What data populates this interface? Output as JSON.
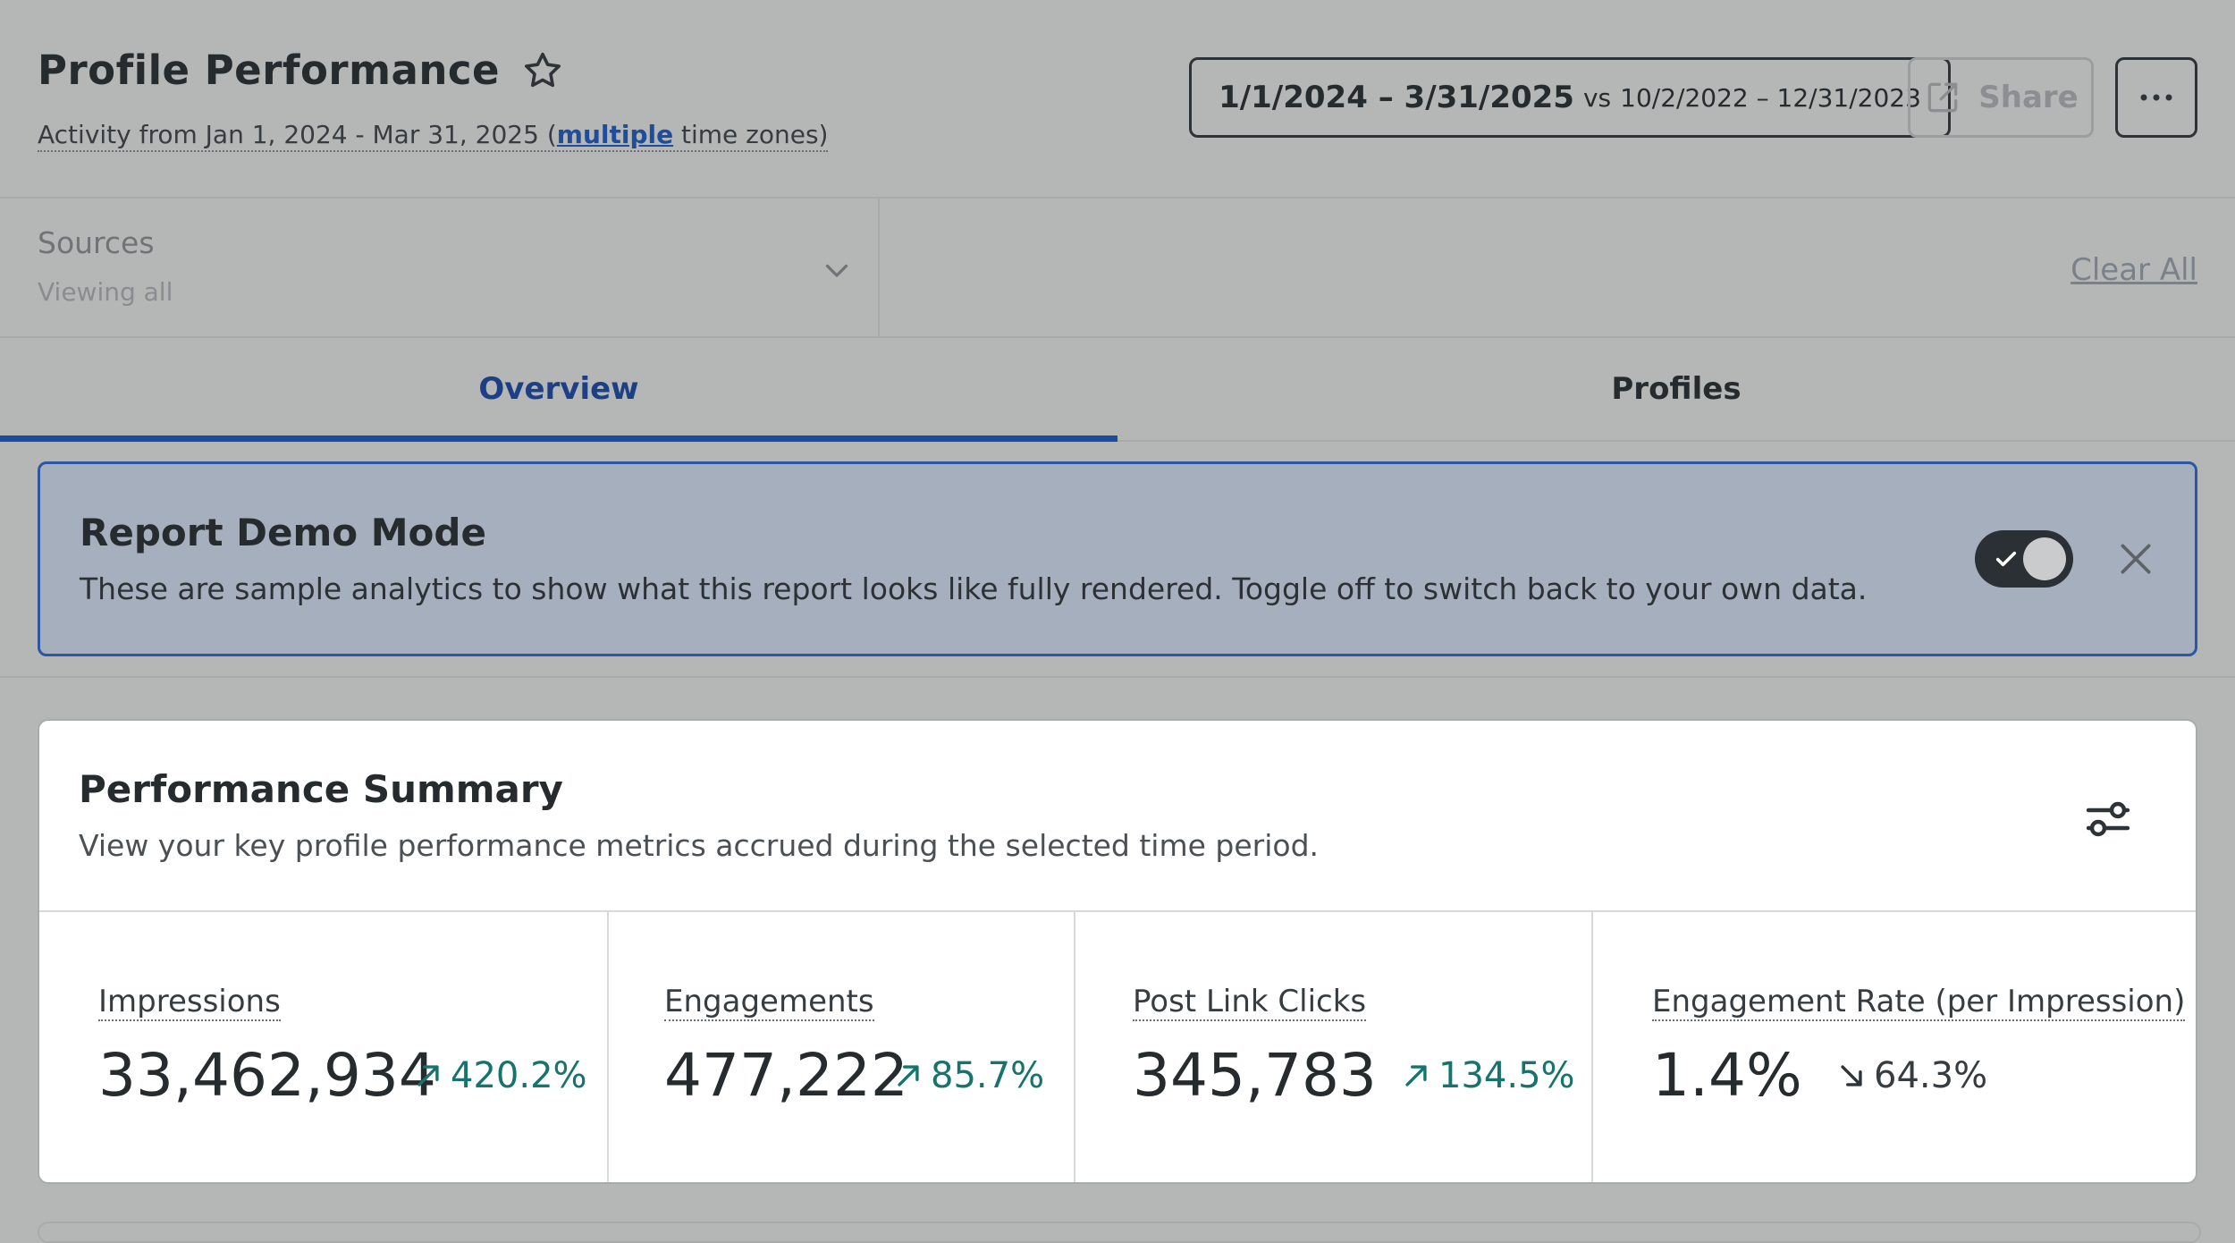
{
  "header": {
    "title": "Profile Performance",
    "activity_prefix": "Activity from Jan 1, 2024 - Mar 31, 2025 (",
    "activity_link": "multiple",
    "activity_suffix": " time zones)",
    "date_range": "1/1/2024 – 3/31/2025",
    "vs_label": "vs",
    "compare_range": "10/2/2022 – 12/31/2023",
    "share_label": "Share"
  },
  "filters": {
    "sources_label": "Sources",
    "sources_value": "Viewing all",
    "clear_all": "Clear All"
  },
  "tabs": [
    {
      "label": "Overview",
      "active": true
    },
    {
      "label": "Profiles",
      "active": false
    }
  ],
  "demo_banner": {
    "title": "Report Demo Mode",
    "description": "These are sample analytics to show what this report looks like fully rendered. Toggle off to switch back to your own data.",
    "toggle_on": true
  },
  "summary": {
    "title": "Performance Summary",
    "description": "View your key profile performance metrics accrued during the selected time period.",
    "metrics": [
      {
        "label": "Impressions",
        "value": "33,462,934",
        "change": "420.2%",
        "direction": "up"
      },
      {
        "label": "Engagements",
        "value": "477,222",
        "change": "85.7%",
        "direction": "up"
      },
      {
        "label": "Post Link Clicks",
        "value": "345,783",
        "change": "134.5%",
        "direction": "up"
      },
      {
        "label": "Engagement Rate (per Impression)",
        "value": "1.4%",
        "change": "64.3%",
        "direction": "down"
      }
    ]
  },
  "colors": {
    "accent": "#1c4aa0",
    "positive": "#17746c",
    "overlay_bg": "#b5b7b6",
    "banner_bg": "#a6afbd"
  },
  "icons": [
    "star-icon",
    "share-icon",
    "more-icon",
    "chevron-down-icon",
    "check-icon",
    "close-icon",
    "settings-icon",
    "arrow-up-right-icon",
    "arrow-down-right-icon"
  ]
}
